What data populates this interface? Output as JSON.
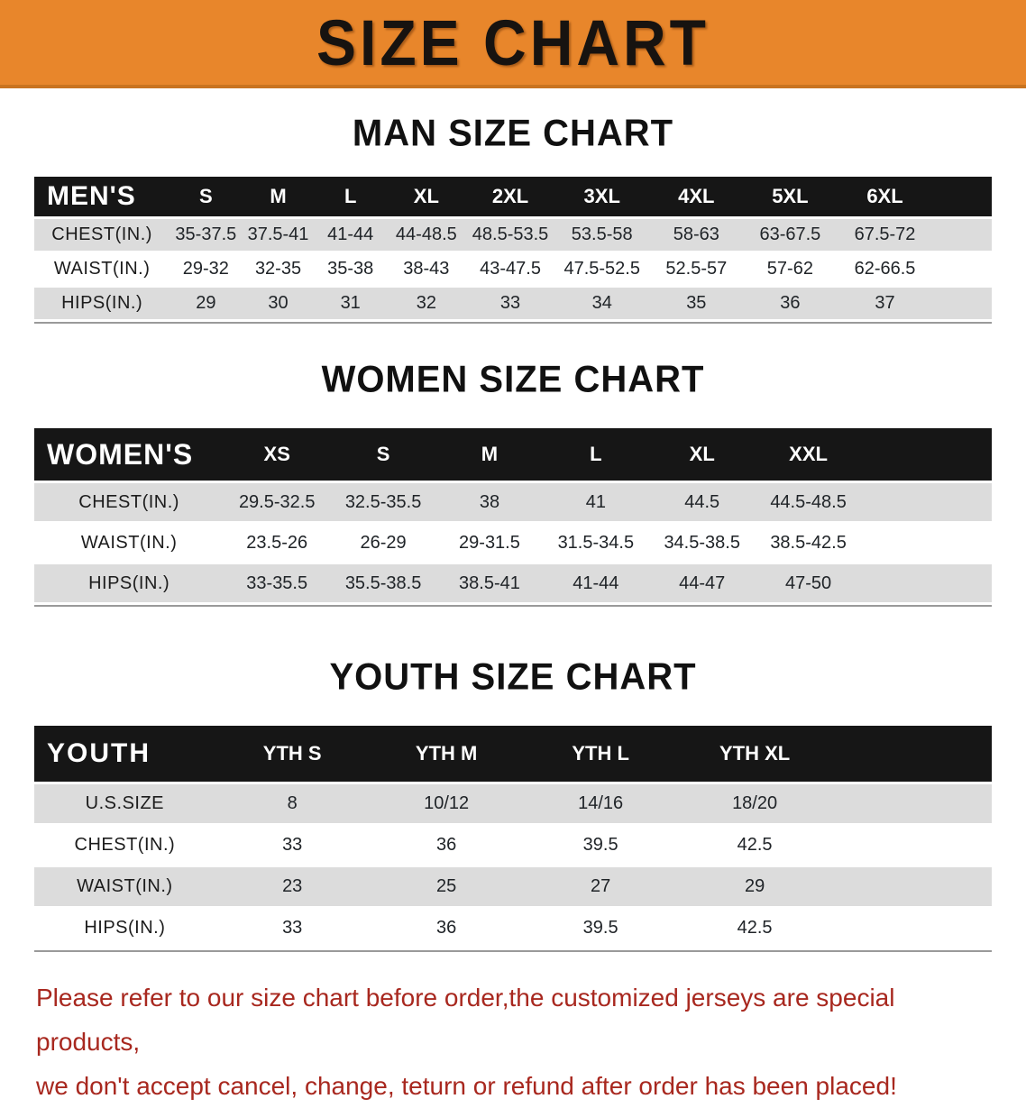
{
  "banner": {
    "title": "SIZE CHART"
  },
  "sections": [
    {
      "heading": "MAN SIZE CHART",
      "table": {
        "label": "MEN'S",
        "columns": [
          "S",
          "M",
          "L",
          "XL",
          "2XL",
          "3XL",
          "4XL",
          "5XL",
          "6XL"
        ],
        "rows": [
          {
            "label": "CHEST(IN.)",
            "values": [
              "35-37.5",
              "37.5-41",
              "41-44",
              "44-48.5",
              "48.5-53.5",
              "53.5-58",
              "58-63",
              "63-67.5",
              "67.5-72"
            ]
          },
          {
            "label": "WAIST(IN.)",
            "values": [
              "29-32",
              "32-35",
              "35-38",
              "38-43",
              "43-47.5",
              "47.5-52.5",
              "52.5-57",
              "57-62",
              "62-66.5"
            ]
          },
          {
            "label": "HIPS(IN.)",
            "values": [
              "29",
              "30",
              "31",
              "32",
              "33",
              "34",
              "35",
              "36",
              "37"
            ]
          }
        ]
      }
    },
    {
      "heading": "WOMEN SIZE CHART",
      "table": {
        "label": "WOMEN'S",
        "columns": [
          "XS",
          "S",
          "M",
          "L",
          "XL",
          "XXL"
        ],
        "rows": [
          {
            "label": "CHEST(IN.)",
            "values": [
              "29.5-32.5",
              "32.5-35.5",
              "38",
              "41",
              "44.5",
              "44.5-48.5"
            ]
          },
          {
            "label": "WAIST(IN.)",
            "values": [
              "23.5-26",
              "26-29",
              "29-31.5",
              "31.5-34.5",
              "34.5-38.5",
              "38.5-42.5"
            ]
          },
          {
            "label": "HIPS(IN.)",
            "values": [
              "33-35.5",
              "35.5-38.5",
              "38.5-41",
              "41-44",
              "44-47",
              "47-50"
            ]
          }
        ]
      }
    },
    {
      "heading": "YOUTH SIZE CHART",
      "table": {
        "label": "YOUTH",
        "columns": [
          "YTH S",
          "YTH M",
          "YTH L",
          "YTH XL"
        ],
        "rows": [
          {
            "label": "U.S.SIZE",
            "values": [
              "8",
              "10/12",
              "14/16",
              "18/20"
            ]
          },
          {
            "label": "CHEST(IN.)",
            "values": [
              "33",
              "36",
              "39.5",
              "42.5"
            ]
          },
          {
            "label": "WAIST(IN.)",
            "values": [
              "23",
              "25",
              "27",
              "29"
            ]
          },
          {
            "label": "HIPS(IN.)",
            "values": [
              "33",
              "36",
              "39.5",
              "42.5"
            ]
          }
        ]
      }
    }
  ],
  "footer": {
    "line1": "Please refer to our size chart before order,the customized jerseys are special products,",
    "line2": "we don't accept cancel, change, teturn or refund after order has been placed!"
  },
  "colors": {
    "banner_bg": "#E8862B",
    "banner_edge": "#C9731F",
    "title_black": "#171310",
    "heading_black": "#111111",
    "band": "#161616",
    "stripe": "#DCDCDC",
    "footer_red": "#A8281F"
  }
}
